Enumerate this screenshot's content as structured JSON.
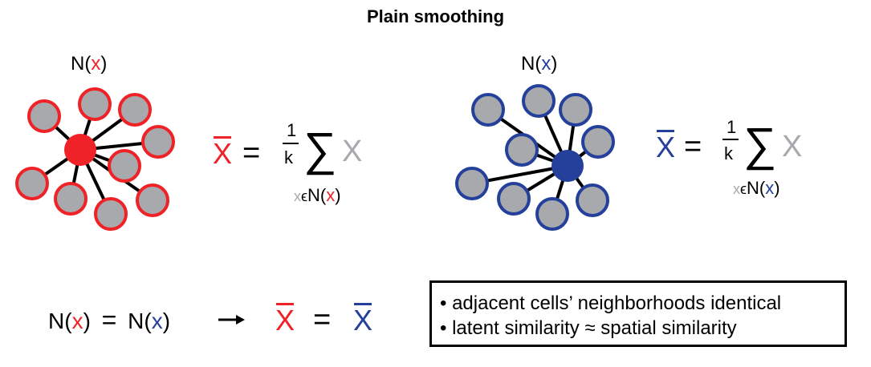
{
  "title": "Plain smoothing",
  "neighborhood_label": {
    "N": "N",
    "open": "(",
    "x": "x",
    "close": ")"
  },
  "formula": {
    "xbar": "X",
    "equals": "=",
    "one": "1",
    "k": "k",
    "sigma": "∑",
    "x": "X",
    "sub_x": "x",
    "in": "ϵ"
  },
  "bottom_equation": {
    "arrow": "→",
    "equals": "="
  },
  "box_lines": [
    "• adjacent cells’ neighborhoods identical",
    "• latent similarity ≈ spatial similarity"
  ],
  "colors": {
    "red": "#ee2227",
    "blue": "#24409a",
    "gray": "#a7a9ac",
    "node_fill": "#a7a9ac"
  },
  "left_graph": {
    "center_color": "red",
    "neighbor_count": 9
  },
  "right_graph": {
    "center_color": "blue",
    "neighbor_count": 9
  }
}
